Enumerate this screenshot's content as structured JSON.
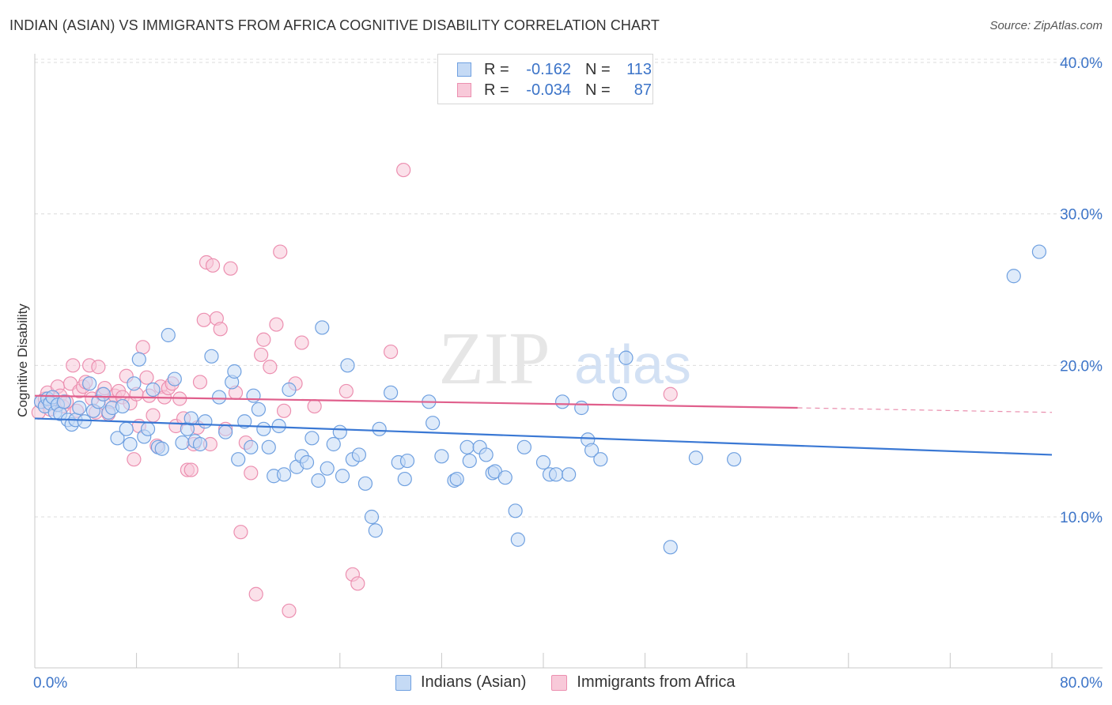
{
  "title": "INDIAN (ASIAN) VS IMMIGRANTS FROM AFRICA COGNITIVE DISABILITY CORRELATION CHART",
  "source": "Source: ZipAtlas.com",
  "watermark": {
    "zip": "ZIP",
    "atlas": "atlas"
  },
  "legend": {
    "rows": [
      {
        "r_label": "R =",
        "r_value": "-0.162",
        "n_label": "N =",
        "n_value": "113",
        "color": "#6fa0e0",
        "fill": "#c5daf5"
      },
      {
        "r_label": "R =",
        "r_value": "-0.034",
        "n_label": "N =",
        "n_value": "87",
        "color": "#ec8fb0",
        "fill": "#f8c9d9"
      }
    ]
  },
  "bottom_legend": {
    "items": [
      {
        "label": "Indians (Asian)",
        "color": "#6fa0e0",
        "fill": "#c5daf5"
      },
      {
        "label": "Immigrants from Africa",
        "color": "#ec8fb0",
        "fill": "#f8c9d9"
      }
    ]
  },
  "chart_data": {
    "type": "scatter",
    "title": "INDIAN (ASIAN) VS IMMIGRANTS FROM AFRICA COGNITIVE DISABILITY CORRELATION CHART",
    "xlabel": "",
    "ylabel": "Cognitive Disability",
    "xlim": [
      0,
      80
    ],
    "ylim": [
      0,
      41
    ],
    "x_tick_labels": [
      "0.0%",
      "80.0%"
    ],
    "y_ticks": [
      10,
      20,
      30,
      40
    ],
    "y_tick_labels": [
      "10.0%",
      "20.0%",
      "30.0%",
      "40.0%"
    ],
    "grid": true,
    "series": [
      {
        "name": "Indians (Asian)",
        "color": "#3a78d4",
        "fill": "#c5daf5",
        "stroke": "#6fa0e0",
        "trend": {
          "x0": 0,
          "y0": 16.5,
          "x1": 80,
          "y1": 14.1
        },
        "points": [
          [
            0.5,
            17.6
          ],
          [
            0.8,
            17.3
          ],
          [
            1.0,
            17.8
          ],
          [
            1.2,
            17.5
          ],
          [
            1.4,
            17.9
          ],
          [
            1.6,
            16.9
          ],
          [
            1.8,
            17.4
          ],
          [
            2.0,
            16.8
          ],
          [
            2.3,
            17.6
          ],
          [
            2.6,
            16.4
          ],
          [
            2.9,
            16.1
          ],
          [
            3.2,
            16.4
          ],
          [
            3.5,
            17.2
          ],
          [
            3.9,
            16.3
          ],
          [
            4.3,
            18.8
          ],
          [
            4.6,
            17.0
          ],
          [
            5.0,
            17.6
          ],
          [
            5.4,
            18.1
          ],
          [
            5.8,
            16.9
          ],
          [
            6.1,
            17.2
          ],
          [
            6.5,
            15.2
          ],
          [
            6.9,
            17.3
          ],
          [
            7.2,
            15.8
          ],
          [
            7.5,
            14.8
          ],
          [
            7.8,
            18.8
          ],
          [
            8.2,
            20.4
          ],
          [
            8.6,
            15.3
          ],
          [
            8.9,
            15.8
          ],
          [
            9.3,
            18.4
          ],
          [
            9.7,
            14.6
          ],
          [
            10.0,
            14.5
          ],
          [
            10.5,
            22.0
          ],
          [
            11.0,
            19.1
          ],
          [
            11.6,
            14.9
          ],
          [
            12.0,
            15.8
          ],
          [
            12.3,
            16.5
          ],
          [
            12.6,
            15.0
          ],
          [
            13.0,
            14.8
          ],
          [
            13.4,
            16.3
          ],
          [
            13.9,
            20.6
          ],
          [
            14.5,
            17.9
          ],
          [
            15.0,
            15.6
          ],
          [
            15.5,
            18.9
          ],
          [
            15.7,
            19.6
          ],
          [
            16.0,
            13.8
          ],
          [
            16.5,
            16.3
          ],
          [
            17.0,
            14.6
          ],
          [
            17.2,
            18.0
          ],
          [
            17.6,
            17.1
          ],
          [
            18.0,
            15.8
          ],
          [
            18.4,
            14.6
          ],
          [
            18.8,
            12.7
          ],
          [
            19.2,
            16.0
          ],
          [
            19.6,
            12.8
          ],
          [
            20.0,
            18.4
          ],
          [
            20.6,
            13.3
          ],
          [
            21.0,
            14.0
          ],
          [
            21.4,
            13.6
          ],
          [
            21.8,
            15.2
          ],
          [
            22.3,
            12.4
          ],
          [
            22.6,
            22.5
          ],
          [
            23.0,
            13.2
          ],
          [
            23.5,
            14.8
          ],
          [
            24.0,
            15.6
          ],
          [
            24.2,
            12.7
          ],
          [
            24.6,
            20.0
          ],
          [
            25.0,
            13.8
          ],
          [
            25.5,
            14.1
          ],
          [
            26.0,
            12.2
          ],
          [
            26.5,
            10.0
          ],
          [
            26.8,
            9.1
          ],
          [
            27.1,
            15.8
          ],
          [
            28.0,
            18.2
          ],
          [
            28.6,
            13.6
          ],
          [
            29.1,
            12.5
          ],
          [
            29.3,
            13.7
          ],
          [
            31.0,
            17.6
          ],
          [
            31.3,
            16.2
          ],
          [
            32.0,
            14.0
          ],
          [
            33.0,
            12.4
          ],
          [
            33.2,
            12.5
          ],
          [
            34.0,
            14.6
          ],
          [
            34.2,
            13.7
          ],
          [
            35.0,
            14.6
          ],
          [
            35.5,
            14.1
          ],
          [
            36.0,
            12.9
          ],
          [
            36.2,
            13.0
          ],
          [
            37.0,
            12.6
          ],
          [
            37.8,
            10.4
          ],
          [
            38.0,
            8.5
          ],
          [
            38.5,
            14.6
          ],
          [
            40.0,
            13.6
          ],
          [
            40.5,
            12.8
          ],
          [
            41.0,
            12.8
          ],
          [
            41.5,
            17.6
          ],
          [
            42.0,
            12.8
          ],
          [
            43.0,
            17.2
          ],
          [
            43.5,
            15.1
          ],
          [
            43.8,
            14.4
          ],
          [
            44.5,
            13.8
          ],
          [
            46.0,
            18.1
          ],
          [
            46.5,
            20.5
          ],
          [
            50.0,
            8.0
          ],
          [
            52.0,
            13.9
          ],
          [
            55.0,
            13.8
          ],
          [
            77.0,
            25.9
          ],
          [
            79.0,
            27.5
          ]
        ]
      },
      {
        "name": "Immigrants from Africa",
        "color": "#e05f8c",
        "fill": "#f8c9d9",
        "stroke": "#ec8fb0",
        "trend": {
          "x0": 0,
          "y0": 18.0,
          "x1": 60,
          "y1": 17.2,
          "x_dashed_end": 80,
          "y_dashed_end": 16.9
        },
        "points": [
          [
            0.3,
            16.9
          ],
          [
            0.5,
            17.6
          ],
          [
            0.8,
            17.8
          ],
          [
            1.0,
            18.2
          ],
          [
            1.2,
            17.1
          ],
          [
            1.5,
            17.5
          ],
          [
            1.8,
            18.6
          ],
          [
            2.0,
            18.0
          ],
          [
            2.2,
            17.3
          ],
          [
            2.5,
            17.6
          ],
          [
            2.8,
            18.8
          ],
          [
            3.0,
            20.0
          ],
          [
            3.3,
            17.0
          ],
          [
            3.5,
            18.3
          ],
          [
            3.8,
            18.6
          ],
          [
            4.0,
            18.9
          ],
          [
            4.3,
            20.0
          ],
          [
            4.5,
            17.8
          ],
          [
            4.8,
            16.9
          ],
          [
            5.0,
            19.9
          ],
          [
            5.3,
            18.1
          ],
          [
            5.5,
            18.5
          ],
          [
            5.8,
            16.8
          ],
          [
            6.0,
            17.6
          ],
          [
            6.3,
            18.0
          ],
          [
            6.6,
            18.3
          ],
          [
            6.9,
            17.9
          ],
          [
            7.2,
            19.3
          ],
          [
            7.5,
            17.5
          ],
          [
            7.8,
            13.8
          ],
          [
            8.0,
            18.1
          ],
          [
            8.2,
            16.0
          ],
          [
            8.5,
            21.2
          ],
          [
            8.8,
            19.2
          ],
          [
            9.0,
            18.0
          ],
          [
            9.3,
            16.7
          ],
          [
            9.6,
            14.7
          ],
          [
            9.9,
            18.6
          ],
          [
            10.2,
            17.9
          ],
          [
            10.5,
            18.5
          ],
          [
            10.8,
            18.8
          ],
          [
            11.1,
            16.0
          ],
          [
            11.4,
            17.8
          ],
          [
            11.7,
            16.5
          ],
          [
            12.0,
            13.1
          ],
          [
            12.3,
            13.1
          ],
          [
            12.5,
            14.8
          ],
          [
            12.8,
            15.9
          ],
          [
            13.0,
            18.9
          ],
          [
            13.3,
            23.0
          ],
          [
            13.5,
            26.8
          ],
          [
            13.8,
            14.8
          ],
          [
            14.0,
            26.6
          ],
          [
            14.3,
            23.1
          ],
          [
            14.6,
            22.4
          ],
          [
            15.0,
            15.8
          ],
          [
            15.4,
            26.4
          ],
          [
            15.8,
            18.2
          ],
          [
            16.2,
            9.0
          ],
          [
            16.6,
            14.9
          ],
          [
            17.0,
            12.9
          ],
          [
            17.4,
            4.9
          ],
          [
            17.8,
            20.7
          ],
          [
            18.0,
            21.7
          ],
          [
            18.5,
            19.9
          ],
          [
            19.0,
            22.7
          ],
          [
            19.3,
            27.5
          ],
          [
            19.6,
            17.0
          ],
          [
            20.0,
            3.8
          ],
          [
            20.5,
            18.8
          ],
          [
            21.0,
            21.5
          ],
          [
            22.0,
            17.3
          ],
          [
            24.5,
            18.3
          ],
          [
            25.0,
            6.2
          ],
          [
            25.4,
            5.6
          ],
          [
            28.0,
            20.9
          ],
          [
            29.0,
            32.9
          ],
          [
            50.0,
            18.1
          ]
        ]
      }
    ]
  }
}
